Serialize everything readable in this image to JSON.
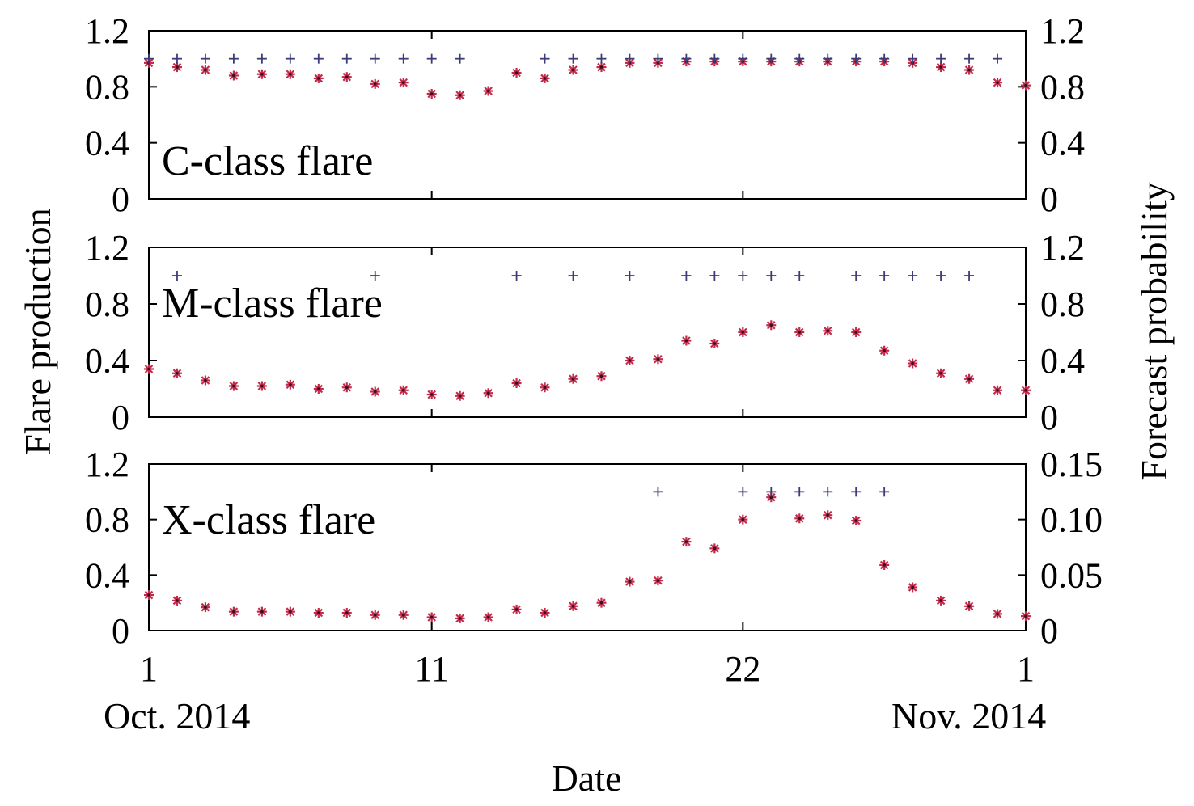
{
  "chart_data": {
    "type": "scatter",
    "x_label": "Date",
    "y_label_left": "Flare production",
    "y_label_right": "Forecast probability",
    "x_range": [
      1,
      32
    ],
    "x_ticks": [
      {
        "x": 1,
        "label": "1",
        "sub": "Oct. 2014"
      },
      {
        "x": 11,
        "label": "11",
        "sub": ""
      },
      {
        "x": 22,
        "label": "22",
        "sub": ""
      },
      {
        "x": 32,
        "label": "1",
        "sub": "Nov. 2014"
      }
    ],
    "colors": {
      "production": "#3c3c78",
      "forecast": "#c42a4a"
    },
    "panels": [
      {
        "label": "C-class flare",
        "left_ylim": [
          0,
          1.2
        ],
        "left_ticks": [
          "0",
          "0.4",
          "0.8",
          "1.2"
        ],
        "left_tick_values": [
          0,
          0.4,
          0.8,
          1.2
        ],
        "right_ylim": [
          0,
          1.2
        ],
        "right_ticks": [
          "0",
          "0.4",
          "0.8",
          "1.2"
        ],
        "right_tick_values": [
          0,
          0.4,
          0.8,
          1.2
        ],
        "production_days": [
          1,
          2,
          3,
          4,
          5,
          6,
          7,
          8,
          9,
          10,
          11,
          12,
          15,
          16,
          17,
          18,
          19,
          20,
          21,
          22,
          23,
          24,
          25,
          26,
          27,
          28,
          29,
          30,
          31
        ],
        "forecast": [
          [
            1,
            0.97
          ],
          [
            2,
            0.94
          ],
          [
            3,
            0.92
          ],
          [
            4,
            0.88
          ],
          [
            5,
            0.89
          ],
          [
            6,
            0.89
          ],
          [
            7,
            0.86
          ],
          [
            8,
            0.87
          ],
          [
            9,
            0.82
          ],
          [
            10,
            0.83
          ],
          [
            11,
            0.75
          ],
          [
            12,
            0.74
          ],
          [
            13,
            0.77
          ],
          [
            14,
            0.9
          ],
          [
            15,
            0.86
          ],
          [
            16,
            0.92
          ],
          [
            17,
            0.94
          ],
          [
            18,
            0.97
          ],
          [
            19,
            0.97
          ],
          [
            20,
            0.98
          ],
          [
            21,
            0.98
          ],
          [
            22,
            0.98
          ],
          [
            23,
            0.98
          ],
          [
            24,
            0.98
          ],
          [
            25,
            0.98
          ],
          [
            26,
            0.98
          ],
          [
            27,
            0.98
          ],
          [
            28,
            0.97
          ],
          [
            29,
            0.94
          ],
          [
            30,
            0.92
          ],
          [
            31,
            0.83
          ],
          [
            32,
            0.81
          ]
        ]
      },
      {
        "label": "M-class flare",
        "left_ylim": [
          0,
          1.2
        ],
        "left_ticks": [
          "0",
          "0.4",
          "0.8",
          "1.2"
        ],
        "left_tick_values": [
          0,
          0.4,
          0.8,
          1.2
        ],
        "right_ylim": [
          0,
          1.2
        ],
        "right_ticks": [
          "0",
          "0.4",
          "0.8",
          "1.2"
        ],
        "right_tick_values": [
          0,
          0.4,
          0.8,
          1.2
        ],
        "production_days": [
          2,
          9,
          14,
          16,
          18,
          20,
          21,
          22,
          23,
          24,
          26,
          27,
          28,
          29,
          30
        ],
        "forecast": [
          [
            1,
            0.34
          ],
          [
            2,
            0.31
          ],
          [
            3,
            0.26
          ],
          [
            4,
            0.22
          ],
          [
            5,
            0.22
          ],
          [
            6,
            0.23
          ],
          [
            7,
            0.2
          ],
          [
            8,
            0.21
          ],
          [
            9,
            0.18
          ],
          [
            10,
            0.19
          ],
          [
            11,
            0.16
          ],
          [
            12,
            0.15
          ],
          [
            13,
            0.17
          ],
          [
            14,
            0.24
          ],
          [
            15,
            0.21
          ],
          [
            16,
            0.27
          ],
          [
            17,
            0.29
          ],
          [
            18,
            0.4
          ],
          [
            19,
            0.41
          ],
          [
            20,
            0.54
          ],
          [
            21,
            0.52
          ],
          [
            22,
            0.6
          ],
          [
            23,
            0.65
          ],
          [
            24,
            0.6
          ],
          [
            25,
            0.61
          ],
          [
            26,
            0.6
          ],
          [
            27,
            0.47
          ],
          [
            28,
            0.38
          ],
          [
            29,
            0.31
          ],
          [
            30,
            0.27
          ],
          [
            31,
            0.19
          ],
          [
            32,
            0.19
          ]
        ]
      },
      {
        "label": "X-class flare",
        "left_ylim": [
          0,
          1.2
        ],
        "left_ticks": [
          "0",
          "0.4",
          "0.8",
          "1.2"
        ],
        "left_tick_values": [
          0,
          0.4,
          0.8,
          1.2
        ],
        "right_ylim": [
          0,
          0.15
        ],
        "right_ticks": [
          "0",
          "0.05",
          "0.10",
          "0.15"
        ],
        "right_tick_values": [
          0,
          0.05,
          0.1,
          0.15
        ],
        "production_days": [
          19,
          22,
          23,
          24,
          25,
          26,
          27
        ],
        "forecast": [
          [
            1,
            0.032
          ],
          [
            2,
            0.027
          ],
          [
            3,
            0.021
          ],
          [
            4,
            0.017
          ],
          [
            5,
            0.017
          ],
          [
            6,
            0.017
          ],
          [
            7,
            0.016
          ],
          [
            8,
            0.016
          ],
          [
            9,
            0.014
          ],
          [
            10,
            0.014
          ],
          [
            11,
            0.012
          ],
          [
            12,
            0.011
          ],
          [
            13,
            0.012
          ],
          [
            14,
            0.019
          ],
          [
            15,
            0.016
          ],
          [
            16,
            0.022
          ],
          [
            17,
            0.025
          ],
          [
            18,
            0.044
          ],
          [
            19,
            0.045
          ],
          [
            20,
            0.08
          ],
          [
            21,
            0.074
          ],
          [
            22,
            0.1
          ],
          [
            23,
            0.12
          ],
          [
            24,
            0.101
          ],
          [
            25,
            0.104
          ],
          [
            26,
            0.099
          ],
          [
            27,
            0.059
          ],
          [
            28,
            0.039
          ],
          [
            29,
            0.027
          ],
          [
            30,
            0.022
          ],
          [
            31,
            0.015
          ],
          [
            32,
            0.013
          ]
        ]
      }
    ]
  }
}
